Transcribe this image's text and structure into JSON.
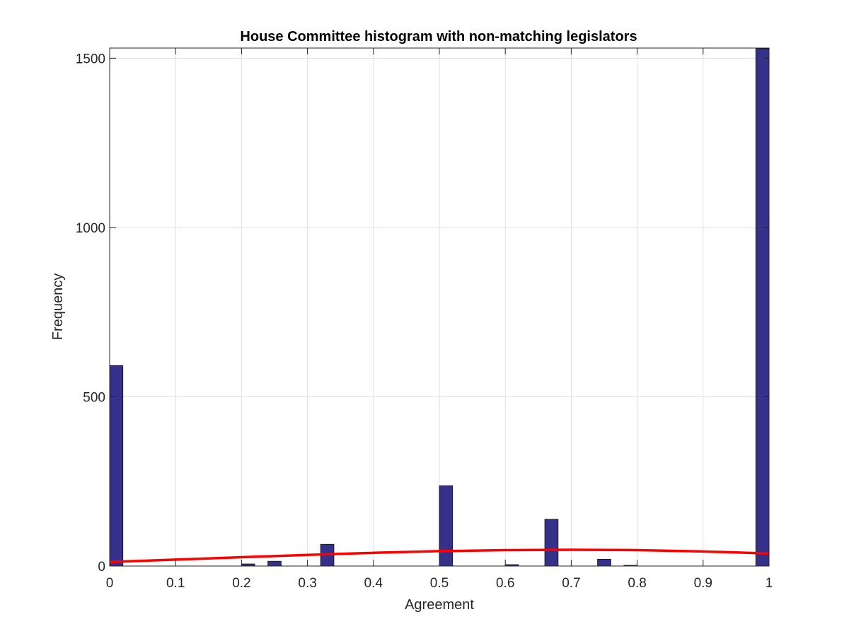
{
  "chart_data": {
    "type": "bar",
    "title": "House Committee histogram with non-matching legislators",
    "xlabel": "Agreement",
    "ylabel": "Frequency",
    "xlim": [
      0,
      1
    ],
    "ylim": [
      0,
      1530
    ],
    "xticks": [
      0,
      0.1,
      0.2,
      0.3,
      0.4,
      0.5,
      0.6,
      0.7,
      0.8,
      0.9,
      1
    ],
    "xtick_labels": [
      "0",
      "0.1",
      "0.2",
      "0.3",
      "0.4",
      "0.5",
      "0.6",
      "0.7",
      "0.8",
      "0.9",
      "1"
    ],
    "yticks": [
      0,
      500,
      1000,
      1500
    ],
    "ytick_labels": [
      "0",
      "500",
      "1000",
      "1500"
    ],
    "grid": true,
    "bar_color": "#35308a",
    "bar_edge_color": "#1a1a1a",
    "fit_color": "#ff0000",
    "bars": [
      {
        "x0": 0.0,
        "x1": 0.02,
        "value": 592
      },
      {
        "x0": 0.2,
        "x1": 0.22,
        "value": 6
      },
      {
        "x0": 0.22,
        "x1": 0.24,
        "value": 0
      },
      {
        "x0": 0.24,
        "x1": 0.26,
        "value": 14
      },
      {
        "x0": 0.32,
        "x1": 0.34,
        "value": 64
      },
      {
        "x0": 0.5,
        "x1": 0.52,
        "value": 237
      },
      {
        "x0": 0.6,
        "x1": 0.62,
        "value": 4
      },
      {
        "x0": 0.66,
        "x1": 0.68,
        "value": 138
      },
      {
        "x0": 0.74,
        "x1": 0.76,
        "value": 20
      },
      {
        "x0": 0.78,
        "x1": 0.8,
        "value": 2
      },
      {
        "x0": 0.98,
        "x1": 1.0,
        "value": 1528
      }
    ],
    "fit_curve": {
      "x": [
        0,
        0.1,
        0.2,
        0.3,
        0.4,
        0.5,
        0.6,
        0.7,
        0.8,
        0.9,
        1.0
      ],
      "y": [
        12,
        19,
        26,
        33,
        39,
        44,
        47,
        48,
        47,
        43,
        37
      ]
    }
  }
}
